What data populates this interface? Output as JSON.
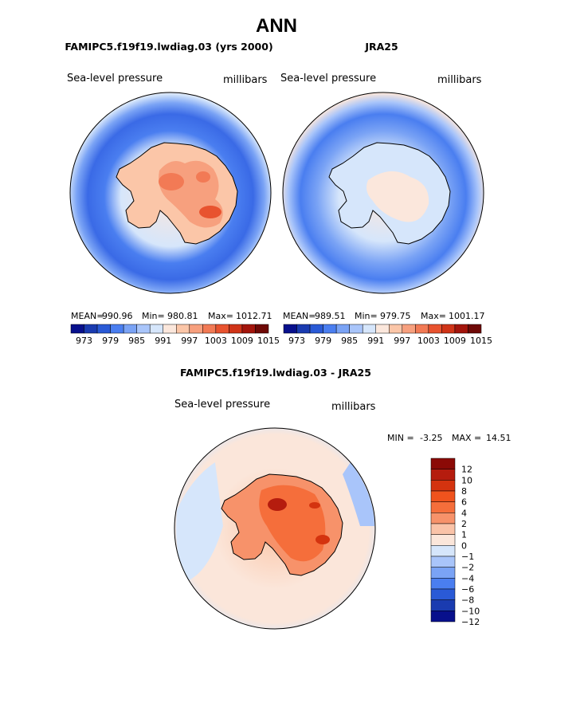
{
  "chart_data": {
    "type": "contour-map",
    "title": "ANN",
    "panels": [
      {
        "id": "model",
        "title": "FAMIPC5.f19f19.lwdiag.03 (yrs 2000)",
        "variable": "Sea-level pressure",
        "units": "millibars",
        "stats": {
          "mean_label": "MEAN=",
          "mean": "990.96",
          "min_label": "Min=",
          "min": "980.81",
          "max_label": "Max=",
          "max": "1012.71"
        },
        "colorbar_ticks": [
          "973",
          "979",
          "985",
          "991",
          "997",
          "1003",
          "1009",
          "1015"
        ]
      },
      {
        "id": "obs",
        "title": "JRA25",
        "variable": "Sea-level pressure",
        "units": "millibars",
        "stats": {
          "mean_label": "MEAN=",
          "mean": "989.51",
          "min_label": "Min=",
          "min": "979.75",
          "max_label": "Max=",
          "max": "1001.17"
        },
        "colorbar_ticks": [
          "973",
          "979",
          "985",
          "991",
          "997",
          "1003",
          "1009",
          "1015"
        ]
      },
      {
        "id": "diff",
        "title": "FAMIPC5.f19f19.lwdiag.03 - JRA25",
        "variable": "Sea-level pressure",
        "units": "millibars",
        "stats": {
          "min_label": "MIN =",
          "min": "-3.25",
          "max_label": "MAX =",
          "max": "14.51"
        },
        "colorbar_ticks": [
          "12",
          "10",
          "8",
          "6",
          "4",
          "2",
          "1",
          "0",
          "−1",
          "−2",
          "−4",
          "−6",
          "−8",
          "−10",
          "−12"
        ]
      }
    ]
  },
  "colors": {
    "abs_scale": [
      "#08108c",
      "#1a3bb0",
      "#2a5ad6",
      "#4a7ef0",
      "#7aa3f5",
      "#a9c5fa",
      "#d6e6fb",
      "#fbe7dc",
      "#fbc6a8",
      "#f7a07e",
      "#f27a55",
      "#e8532f",
      "#d03418",
      "#a3150c",
      "#6e0906"
    ],
    "diff_scale": [
      "#8b0a06",
      "#b51c0e",
      "#d4330f",
      "#f0531d",
      "#f56e3b",
      "#f7926a",
      "#fac3a8",
      "#fbe6da",
      "#d6e6fb",
      "#a9c5fa",
      "#7aa3f5",
      "#4a7ef0",
      "#2a5ad6",
      "#1a3bb0",
      "#08108c"
    ]
  }
}
